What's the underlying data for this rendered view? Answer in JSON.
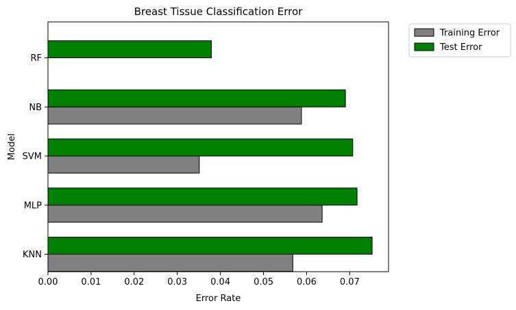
{
  "chart_data": {
    "type": "bar",
    "orientation": "horizontal",
    "title": "Breast Tissue Classification Error",
    "xlabel": "Error Rate",
    "ylabel": "Model",
    "categories": [
      "KNN",
      "MLP",
      "SVM",
      "NB",
      "RF"
    ],
    "series": [
      {
        "name": "Training Error",
        "values": [
          0.0568,
          0.0636,
          0.0351,
          0.0588,
          0.0
        ],
        "color": "#808080"
      },
      {
        "name": "Test Error",
        "values": [
          0.0752,
          0.0717,
          0.0707,
          0.069,
          0.0379
        ],
        "color": "#008000"
      }
    ],
    "xlim": [
      0.0,
      0.079
    ],
    "xticks": [
      0.0,
      0.01,
      0.02,
      0.03,
      0.04,
      0.05,
      0.06,
      0.07
    ],
    "xtick_labels": [
      "0.00",
      "0.01",
      "0.02",
      "0.03",
      "0.04",
      "0.05",
      "0.06",
      "0.07"
    ],
    "grid": false,
    "legend_position": "outside-top-right"
  }
}
